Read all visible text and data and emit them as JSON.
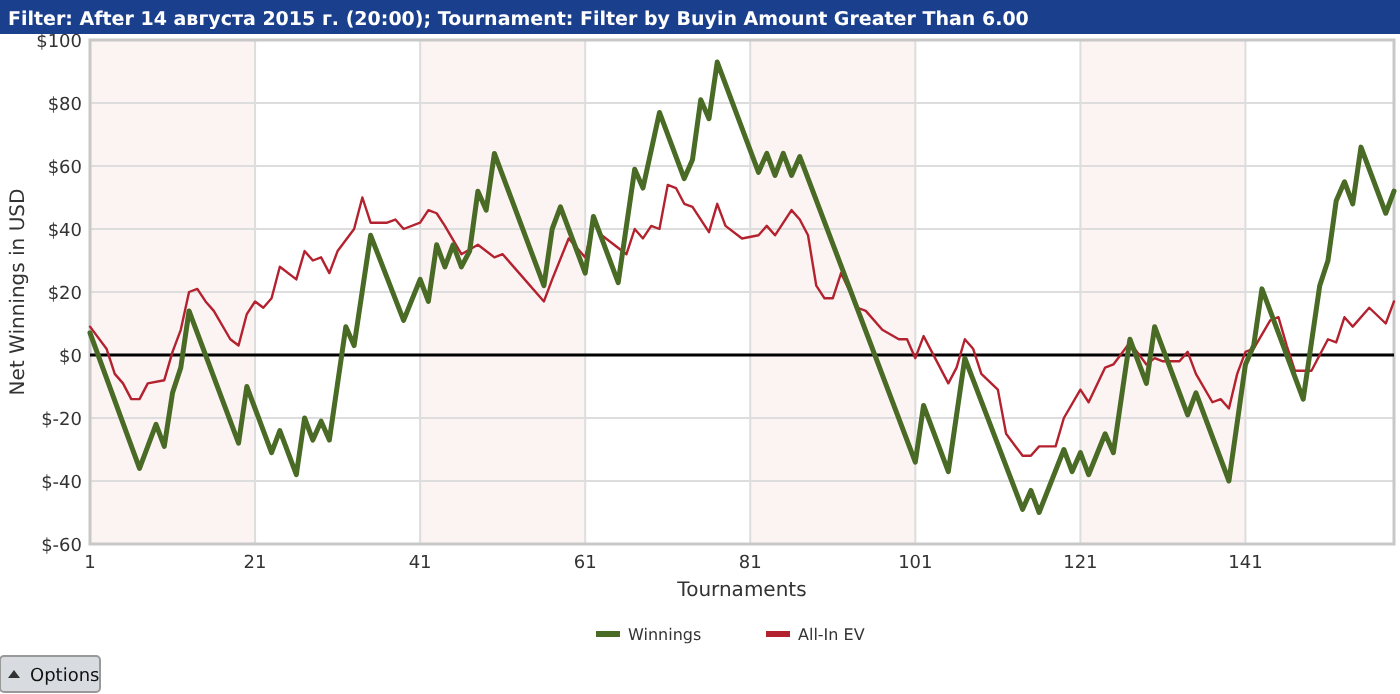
{
  "chart_data": {
    "type": "line",
    "title": "Filter: After 14 августа 2015 г. (20:00); Tournament: Filter by Buyin Amount Greater Than 6.00",
    "xlabel": "Tournaments",
    "ylabel": "Net Winnings in USD",
    "annotations": [
      "Options"
    ],
    "xlim": [
      1,
      159
    ],
    "xticks": [
      1,
      21,
      41,
      61,
      81,
      101,
      121,
      141
    ],
    "ylim": [
      -60,
      100
    ],
    "yticks": [
      {
        "value": 100,
        "label": "$100"
      },
      {
        "value": 80,
        "label": "$80"
      },
      {
        "value": 60,
        "label": "$60"
      },
      {
        "value": 40,
        "label": "$40"
      },
      {
        "value": 20,
        "label": "$20"
      },
      {
        "value": 0,
        "label": "$0"
      },
      {
        "value": -20,
        "label": "$-20"
      },
      {
        "value": -40,
        "label": "$-40"
      },
      {
        "value": -60,
        "label": "$-60"
      }
    ],
    "grid": true,
    "legend": "bottom",
    "line_style": "solid",
    "bands": [
      {
        "axis": "x",
        "from": 1,
        "to": 21,
        "color": "#fcf3f3"
      },
      {
        "axis": "x",
        "from": 41,
        "to": 61,
        "color": "#fcf3f3"
      },
      {
        "axis": "x",
        "from": 81,
        "to": 101,
        "color": "#fcf3f3"
      },
      {
        "axis": "x",
        "from": 121,
        "to": 141,
        "color": "#fcf3f3"
      }
    ],
    "ref_lines": [
      {
        "axis": "y",
        "value": 0,
        "color": "#000000"
      }
    ],
    "series": [
      {
        "name": "All-In EV",
        "color": "#b3222e",
        "x": [
          1,
          3,
          4,
          5,
          6,
          7,
          8,
          10,
          11,
          12,
          13,
          14,
          15,
          16,
          18,
          19,
          20,
          21,
          22,
          23,
          24,
          26,
          27,
          28,
          29,
          30,
          31,
          33,
          34,
          35,
          37,
          38,
          39,
          41,
          42,
          43,
          44,
          46,
          48,
          50,
          51,
          53,
          56,
          57,
          59,
          61,
          62,
          63,
          66,
          67,
          68,
          69,
          70,
          71,
          72,
          73,
          74,
          76,
          77,
          78,
          80,
          82,
          83,
          84,
          86,
          87,
          88,
          89,
          90,
          91,
          92,
          94,
          95,
          97,
          99,
          100,
          101,
          102,
          105,
          106,
          107,
          108,
          109,
          111,
          112,
          114,
          115,
          116,
          118,
          119,
          121,
          122,
          124,
          125,
          127,
          129,
          130,
          131,
          133,
          134,
          135,
          137,
          138,
          139,
          140,
          141,
          142,
          144,
          145,
          146,
          147,
          149,
          150,
          151,
          152,
          153,
          154,
          156,
          158,
          159
        ],
        "values": [
          9,
          2,
          -6,
          -9,
          -14,
          -14,
          -9,
          -8,
          1,
          8,
          20,
          21,
          17,
          14,
          5,
          3,
          13,
          17,
          15,
          18,
          28,
          24,
          33,
          30,
          31,
          26,
          33,
          40,
          50,
          42,
          42,
          43,
          40,
          42,
          46,
          45,
          41,
          32,
          35,
          31,
          32,
          26,
          17,
          24,
          37,
          31,
          42,
          38,
          32,
          40,
          37,
          41,
          40,
          54,
          53,
          48,
          47,
          39,
          48,
          41,
          37,
          38,
          41,
          38,
          46,
          43,
          38,
          22,
          18,
          18,
          26,
          15,
          14,
          8,
          5,
          5,
          -1,
          6,
          -9,
          -4,
          5,
          2,
          -6,
          -11,
          -25,
          -32,
          -32,
          -29,
          -29,
          -20,
          -11,
          -15,
          -4,
          -3,
          4,
          -3,
          -1,
          -2,
          -2,
          1,
          -6,
          -15,
          -14,
          -17,
          -6,
          1,
          2,
          11,
          12,
          3,
          -5,
          -5,
          0,
          5,
          4,
          12,
          9,
          15,
          10,
          17
        ]
      },
      {
        "name": "Winnings",
        "color": "#4a6b25",
        "x": [
          1,
          7,
          9,
          10,
          11,
          12,
          13,
          19,
          20,
          23,
          24,
          26,
          27,
          28,
          29,
          30,
          32,
          33,
          35,
          39,
          41,
          42,
          43,
          44,
          45,
          46,
          47,
          48,
          49,
          50,
          56,
          57,
          58,
          61,
          62,
          65,
          67,
          68,
          70,
          73,
          74,
          75,
          76,
          77,
          82,
          83,
          84,
          85,
          86,
          87,
          101,
          102,
          105,
          107,
          114,
          115,
          116,
          119,
          120,
          121,
          122,
          124,
          125,
          127,
          129,
          130,
          134,
          135,
          139,
          141,
          142,
          143,
          148,
          150,
          151,
          152,
          153,
          154,
          155,
          158,
          159
        ],
        "values": [
          7,
          -36,
          -22,
          -29,
          -12,
          -4,
          14,
          -28,
          -10,
          -31,
          -24,
          -38,
          -20,
          -27,
          -21,
          -27,
          9,
          3,
          38,
          11,
          24,
          17,
          35,
          28,
          35,
          28,
          33,
          52,
          46,
          64,
          22,
          40,
          47,
          26,
          44,
          23,
          59,
          53,
          77,
          56,
          62,
          81,
          75,
          93,
          58,
          64,
          57,
          64,
          57,
          63,
          -34,
          -16,
          -37,
          -1,
          -49,
          -43,
          -50,
          -30,
          -37,
          -31,
          -38,
          -25,
          -31,
          5,
          -9,
          9,
          -19,
          -12,
          -40,
          -3,
          3,
          21,
          -14,
          22,
          30,
          49,
          55,
          48,
          66,
          45,
          52
        ]
      }
    ]
  }
}
